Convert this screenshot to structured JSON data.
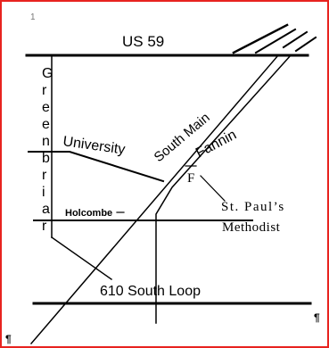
{
  "map": {
    "roads": {
      "us59": "US 59",
      "greenbriar_letters": [
        "G",
        "r",
        "e",
        "e",
        "n",
        "b",
        "r",
        "i",
        "a",
        "r"
      ],
      "university": "University",
      "south_main": "South Main",
      "fannin": "Fannin",
      "holcombe": "Holcombe",
      "loop610": "610 South Loop"
    },
    "landmark": {
      "marker": "F",
      "line1": "St. Paul’s",
      "line2": "Methodist"
    },
    "marks": {
      "top_left": "1",
      "bottom_left": "¶",
      "bottom_right": "¶"
    },
    "colors": {
      "frame": "#e8231f",
      "ink": "#000000"
    }
  }
}
